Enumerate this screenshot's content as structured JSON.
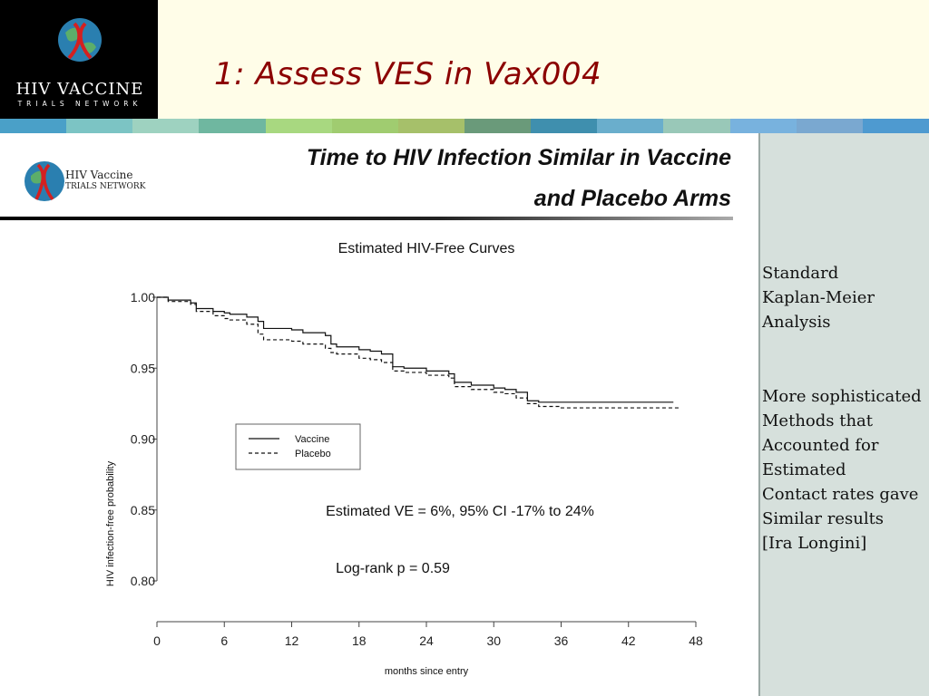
{
  "header": {
    "title": "1: Assess VES in Vax004",
    "logo": {
      "line1": "HIV VACCINE",
      "line2": "TRIALS NETWORK"
    }
  },
  "color_strip": [
    "#4aa0c8",
    "#7cc4c4",
    "#9ed2c0",
    "#6fb7a0",
    "#a8d880",
    "#a0cc70",
    "#a6c06a",
    "#6a9a7a",
    "#3f8fae",
    "#6aaecc",
    "#99c8b8",
    "#78b2de",
    "#7aa8d0",
    "#4e9ad0"
  ],
  "slide": {
    "heading_line1": "Time to HIV Infection Similar in Vaccine",
    "heading_line2": "and Placebo Arms",
    "inner_logo": {
      "line1": "HIV Vaccine",
      "line2": "TRIALS NETWORK"
    }
  },
  "side_notes": {
    "note1": "Standard\nKaplan-Meier\nAnalysis",
    "note2": "More sophisticated\nMethods that\nAccounted for\nEstimated\nContact rates gave\nSimilar results\n[Ira Longini]"
  },
  "chart_data": {
    "type": "line",
    "title": "Estimated HIV-Free Curves",
    "xlabel": "months since entry",
    "ylabel": "HIV infection-free probability",
    "xlim": [
      0,
      48
    ],
    "ylim": [
      0.8,
      1.0
    ],
    "xticks": [
      "0",
      "6",
      "12",
      "18",
      "24",
      "30",
      "36",
      "42",
      "48"
    ],
    "yticks": [
      "1.00",
      "0.95",
      "0.90",
      "0.85",
      "0.80"
    ],
    "legend_position": "center-left",
    "annotations": [
      "Estimated VE = 6%, 95% CI -17% to 24%",
      "Log-rank p = 0.59"
    ],
    "series": [
      {
        "name": "Vaccine",
        "style": "solid",
        "x": [
          0,
          1,
          3,
          3.5,
          5,
          6,
          6.5,
          8,
          9,
          9.5,
          12,
          13,
          15,
          15.5,
          16,
          18,
          19,
          20,
          21,
          22,
          24,
          26,
          26.5,
          28,
          30,
          31,
          32,
          33,
          34,
          36,
          40,
          46
        ],
        "y": [
          1.0,
          0.998,
          0.996,
          0.992,
          0.99,
          0.989,
          0.988,
          0.986,
          0.983,
          0.978,
          0.977,
          0.975,
          0.973,
          0.967,
          0.965,
          0.963,
          0.962,
          0.96,
          0.951,
          0.95,
          0.948,
          0.946,
          0.94,
          0.938,
          0.936,
          0.935,
          0.933,
          0.927,
          0.926,
          0.926,
          0.926,
          0.926
        ]
      },
      {
        "name": "Placebo",
        "style": "dashed",
        "x": [
          0,
          1,
          3,
          3.5,
          5,
          6,
          6.5,
          8,
          9,
          9.5,
          12,
          13,
          15,
          15.5,
          16,
          18,
          19,
          20,
          21,
          22,
          24,
          26,
          26.5,
          28,
          30,
          31,
          32,
          33,
          34,
          36,
          40,
          46.5
        ],
        "y": [
          1.0,
          0.997,
          0.995,
          0.99,
          0.987,
          0.985,
          0.984,
          0.981,
          0.974,
          0.97,
          0.969,
          0.967,
          0.964,
          0.961,
          0.96,
          0.957,
          0.956,
          0.954,
          0.948,
          0.947,
          0.945,
          0.943,
          0.937,
          0.935,
          0.933,
          0.932,
          0.929,
          0.925,
          0.923,
          0.922,
          0.922,
          0.922
        ]
      }
    ]
  }
}
